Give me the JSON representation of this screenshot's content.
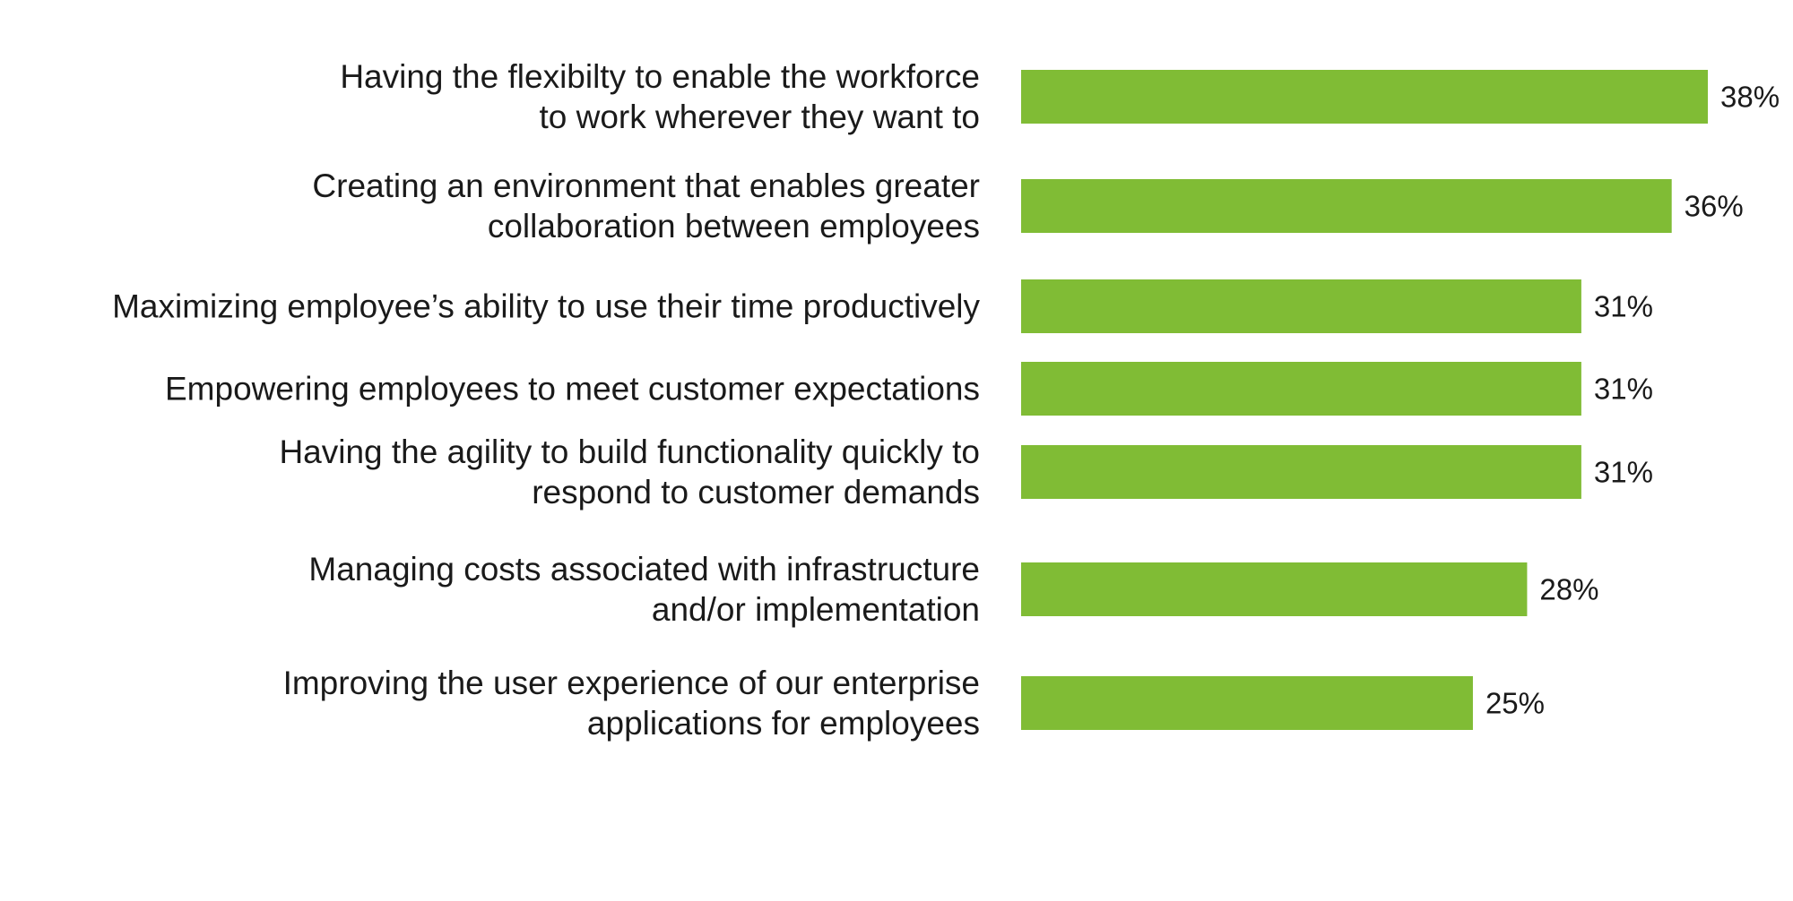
{
  "chart_data": {
    "type": "bar",
    "orientation": "horizontal",
    "categories": [
      [
        "Having the flexibilty to enable the workforce",
        "to work wherever they want to"
      ],
      [
        "Creating an environment that enables greater",
        "collaboration between employees"
      ],
      [
        "Maximizing employee’s ability to use their time productively"
      ],
      [
        "Empowering employees to meet customer expectations"
      ],
      [
        "Having the agility to build functionality quickly to",
        "respond to customer demands"
      ],
      [
        "Managing costs associated with infrastructure",
        "and/or implementation"
      ],
      [
        "Improving the user experience of our enterprise",
        "applications for employees"
      ]
    ],
    "values": [
      38,
      36,
      31,
      31,
      31,
      28,
      25
    ],
    "value_labels": [
      "38%",
      "36%",
      "31%",
      "31%",
      "31%",
      "28%",
      "25%"
    ],
    "xlim": [
      0,
      38
    ],
    "bar_color": "#80bc35",
    "text_color": "#1a1a1a",
    "grid": false,
    "legend": "none"
  }
}
